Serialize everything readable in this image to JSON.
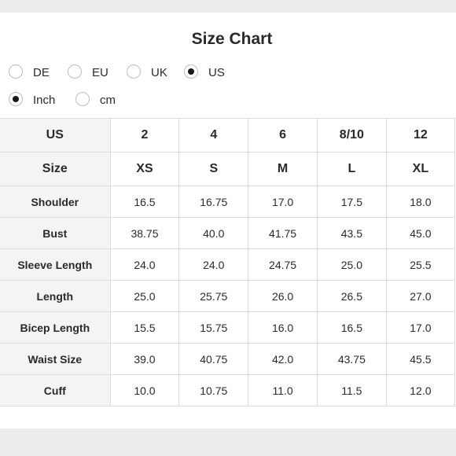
{
  "title": "Size Chart",
  "region_options": [
    {
      "label": "DE",
      "selected": false
    },
    {
      "label": "EU",
      "selected": false
    },
    {
      "label": "UK",
      "selected": false
    },
    {
      "label": "US",
      "selected": true
    }
  ],
  "unit_options": [
    {
      "label": "Inch",
      "selected": true
    },
    {
      "label": "cm",
      "selected": false
    }
  ],
  "table": {
    "header_rows": [
      {
        "label": "US",
        "values": [
          "2",
          "4",
          "6",
          "8/10",
          "12"
        ]
      },
      {
        "label": "Size",
        "values": [
          "XS",
          "S",
          "M",
          "L",
          "XL"
        ]
      }
    ],
    "rows": [
      {
        "label": "Shoulder",
        "values": [
          "16.5",
          "16.75",
          "17.0",
          "17.5",
          "18.0"
        ]
      },
      {
        "label": "Bust",
        "values": [
          "38.75",
          "40.0",
          "41.75",
          "43.5",
          "45.0"
        ]
      },
      {
        "label": "Sleeve Length",
        "values": [
          "24.0",
          "24.0",
          "24.75",
          "25.0",
          "25.5"
        ]
      },
      {
        "label": "Length",
        "values": [
          "25.0",
          "25.75",
          "26.0",
          "26.5",
          "27.0"
        ]
      },
      {
        "label": "Bicep Length",
        "values": [
          "15.5",
          "15.75",
          "16.0",
          "16.5",
          "17.0"
        ]
      },
      {
        "label": "Waist Size",
        "values": [
          "39.0",
          "40.75",
          "42.0",
          "43.75",
          "45.5"
        ]
      },
      {
        "label": "Cuff",
        "values": [
          "10.0",
          "10.75",
          "11.0",
          "11.5",
          "12.0"
        ]
      }
    ]
  }
}
